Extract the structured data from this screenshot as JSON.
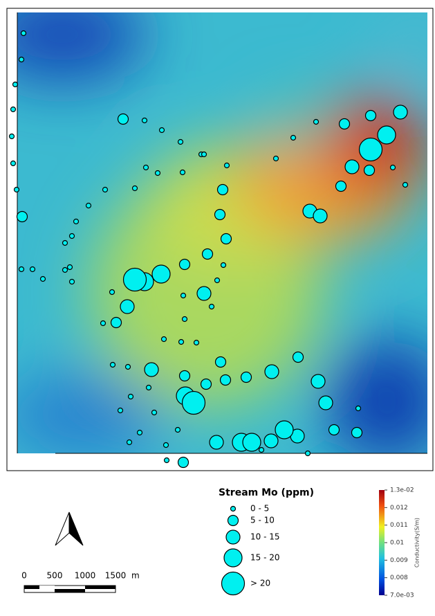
{
  "legend": {
    "title": "Stream Mo (ppm)",
    "classes": [
      "0 - 5",
      "5 - 10",
      "10 - 15",
      "15 - 20",
      "> 20"
    ]
  },
  "scale_bar": {
    "labels": [
      "0",
      "500",
      "1000",
      "1500"
    ],
    "unit": "m"
  },
  "colorbar": {
    "label": "Conductivity(S/m)",
    "ticks": [
      "1.3e-02",
      "0.012",
      "0.011",
      "0.01",
      "0.009",
      "0.008",
      "7.0e-03"
    ]
  }
}
